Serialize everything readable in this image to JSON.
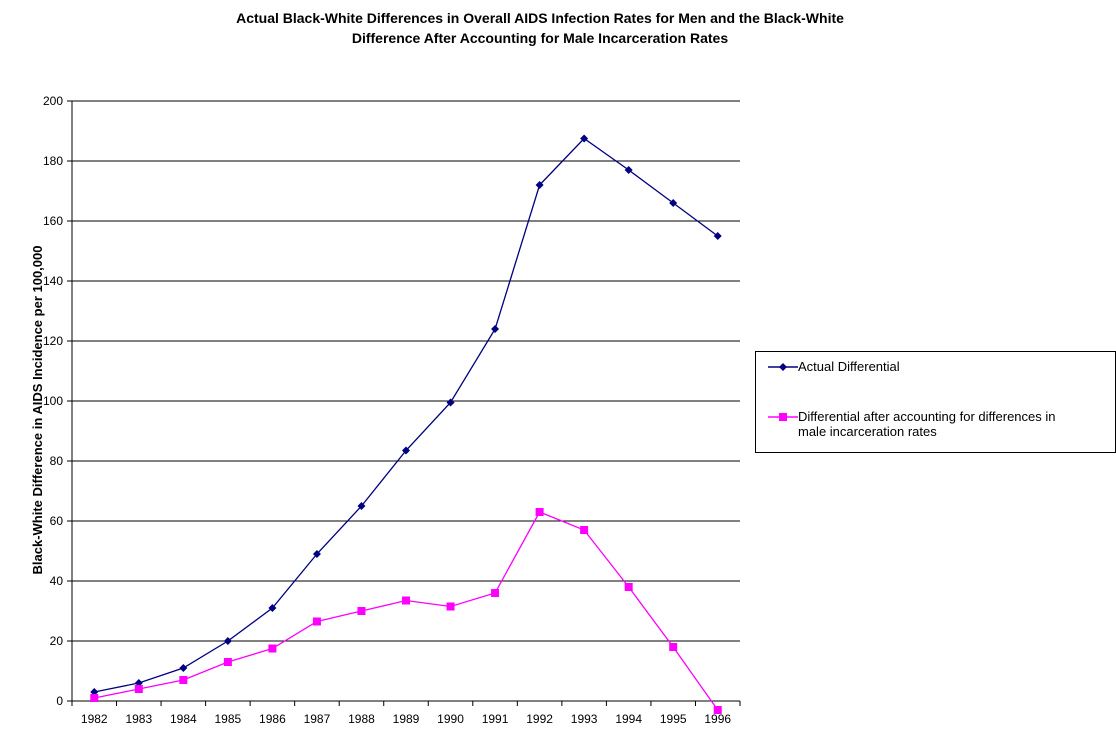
{
  "chart_data": {
    "type": "line",
    "title_lines": [
      "Actual Black-White Differences in Overall AIDS Infection Rates for Men and the Black-White",
      "Difference After Accounting for Male Incarceration Rates"
    ],
    "xlabel": "",
    "ylabel": "Black-White Difference in AIDS Incidence per 100,000",
    "categories": [
      "1982",
      "1983",
      "1984",
      "1985",
      "1986",
      "1987",
      "1988",
      "1989",
      "1990",
      "1991",
      "1992",
      "1993",
      "1994",
      "1995",
      "1996"
    ],
    "ylim": [
      0,
      200
    ],
    "yticks": [
      0,
      20,
      40,
      60,
      80,
      100,
      120,
      140,
      160,
      180,
      200
    ],
    "grid": true,
    "legend_position": "right",
    "series": [
      {
        "name": "Actual Differential",
        "color": "#000080",
        "marker": "diamond",
        "values": [
          3,
          6,
          11,
          20,
          31,
          49,
          65,
          83.5,
          99.5,
          124,
          172,
          187.5,
          177,
          166,
          155
        ]
      },
      {
        "name": "Differential after accounting for differences in\nmale incarceration rates",
        "color": "#ff00ff",
        "marker": "square",
        "values": [
          1,
          4,
          7,
          13,
          17.5,
          26.5,
          30,
          33.5,
          31.5,
          36,
          63,
          57,
          38,
          18,
          -3
        ]
      }
    ]
  }
}
